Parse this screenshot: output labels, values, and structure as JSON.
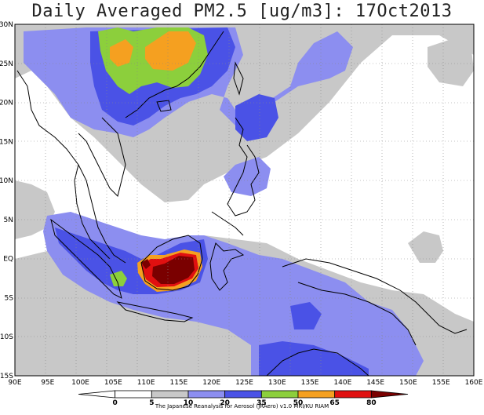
{
  "title": "Daily Averaged PM2.5 [ug/m3]: 17Oct2013",
  "credit": "The Japanese Reanalysis for Aerosol (JRAero) v1.0 MRI/KU RIAM",
  "x_ticks": [
    "90E",
    "95E",
    "100E",
    "105E",
    "110E",
    "115E",
    "120E",
    "125E",
    "130E",
    "135E",
    "140E",
    "145E",
    "150E",
    "155E",
    "160E"
  ],
  "y_ticks": [
    "30N",
    "25N",
    "20N",
    "15N",
    "10N",
    "5N",
    "EQ",
    "5S",
    "10S",
    "15S"
  ],
  "colorbar": {
    "labels": [
      "0",
      "5",
      "10",
      "20",
      "35",
      "50",
      "65",
      "80"
    ],
    "colors": [
      "#ffffff",
      "#ffffff",
      "#c8c8c8",
      "#8c8ef0",
      "#4a52e6",
      "#8ccf3c",
      "#f5a020",
      "#e01010",
      "#7a0000"
    ]
  },
  "colors": {
    "c10": "#c8c8c8",
    "c20": "#8c8ef0",
    "c35": "#4a52e6",
    "c50": "#8ccf3c",
    "c65": "#f5a020",
    "c80": "#e01010",
    "cmax": "#7a0000"
  }
}
